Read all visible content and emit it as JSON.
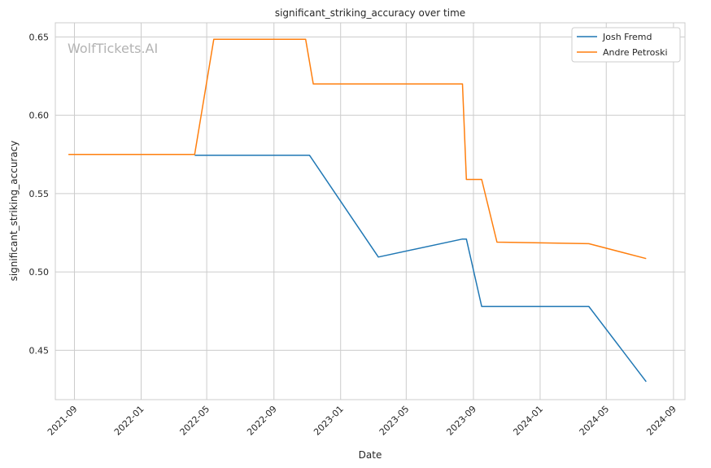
{
  "chart_data": {
    "type": "line",
    "title": "significant_striking_accuracy over time",
    "xlabel": "Date",
    "ylabel": "significant_striking_accuracy",
    "watermark": "WolfTickets.AI",
    "x_ticks": [
      "2021-09",
      "2022-01",
      "2022-05",
      "2022-09",
      "2023-01",
      "2023-05",
      "2023-09",
      "2024-01",
      "2024-05",
      "2024-09"
    ],
    "y_ticks": [
      "0.45",
      "0.50",
      "0.55",
      "0.60",
      "0.65"
    ],
    "xlim": [
      "2021-07-28",
      "2024-09-22"
    ],
    "ylim": [
      0.4185,
      0.659
    ],
    "grid": true,
    "legend_position": "top-right",
    "series": [
      {
        "name": "Josh Fremd",
        "color": "#1f77b4",
        "points": [
          [
            "2022-04-09",
            0.5745
          ],
          [
            "2022-11-05",
            0.5745
          ],
          [
            "2023-03-11",
            0.5095
          ],
          [
            "2023-08-12",
            0.521
          ],
          [
            "2023-08-19",
            0.521
          ],
          [
            "2023-09-16",
            0.478
          ],
          [
            "2024-03-30",
            0.478
          ],
          [
            "2024-07-13",
            0.43
          ]
        ]
      },
      {
        "name": "Andre Petroski",
        "color": "#ff7f0e",
        "points": [
          [
            "2021-08-21",
            0.575
          ],
          [
            "2022-04-09",
            0.575
          ],
          [
            "2022-05-14",
            0.6485
          ],
          [
            "2022-10-29",
            0.6485
          ],
          [
            "2022-11-12",
            0.62
          ],
          [
            "2023-08-12",
            0.62
          ],
          [
            "2023-08-19",
            0.559
          ],
          [
            "2023-09-16",
            0.559
          ],
          [
            "2023-10-14",
            0.519
          ],
          [
            "2024-03-30",
            0.518
          ],
          [
            "2024-07-13",
            0.5085
          ]
        ]
      }
    ]
  }
}
